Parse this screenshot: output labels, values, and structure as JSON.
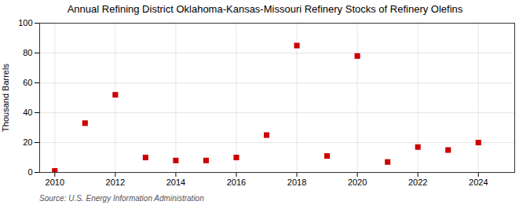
{
  "chart_data": {
    "type": "scatter",
    "title": "Annual Refining District Oklahoma-Kansas-Missouri Refinery Stocks of Refinery Olefins",
    "ylabel": "Thousand Barrels",
    "source": "Source: U.S. Energy Information Administration",
    "x": [
      2010,
      2011,
      2012,
      2013,
      2014,
      2015,
      2016,
      2017,
      2018,
      2019,
      2020,
      2021,
      2022,
      2023,
      2024
    ],
    "values": [
      1,
      33,
      52,
      10,
      8,
      8,
      10,
      25,
      85,
      11,
      78,
      7,
      17,
      15,
      20
    ],
    "xlim": [
      2009.5,
      2025.2
    ],
    "ylim": [
      0,
      100
    ],
    "xticks": [
      2010,
      2012,
      2014,
      2016,
      2018,
      2020,
      2022,
      2024
    ],
    "yticks": [
      0,
      20,
      40,
      60,
      80,
      100
    ],
    "color": "#cc0000",
    "marker": "square",
    "grid": true
  }
}
